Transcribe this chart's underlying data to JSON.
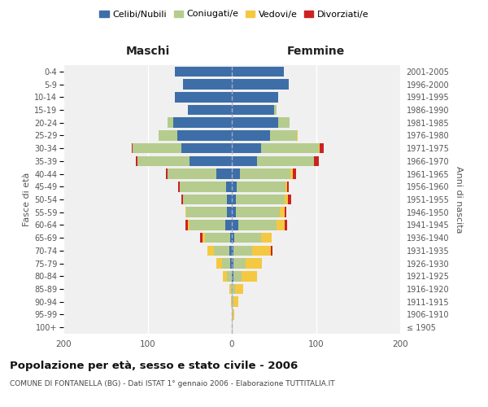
{
  "age_groups": [
    "100+",
    "95-99",
    "90-94",
    "85-89",
    "80-84",
    "75-79",
    "70-74",
    "65-69",
    "60-64",
    "55-59",
    "50-54",
    "45-49",
    "40-44",
    "35-39",
    "30-34",
    "25-29",
    "20-24",
    "15-19",
    "10-14",
    "5-9",
    "0-4"
  ],
  "birth_years": [
    "≤ 1905",
    "1906-1910",
    "1911-1915",
    "1916-1920",
    "1921-1925",
    "1926-1930",
    "1931-1935",
    "1936-1940",
    "1941-1945",
    "1946-1950",
    "1951-1955",
    "1956-1960",
    "1961-1965",
    "1966-1970",
    "1971-1975",
    "1976-1980",
    "1981-1985",
    "1986-1990",
    "1991-1995",
    "1996-2000",
    "2001-2005"
  ],
  "colors": {
    "celibi": "#3d6ea8",
    "coniugati": "#b5cc8e",
    "vedovi": "#f5c842",
    "divorziati": "#cc2222"
  },
  "maschi_celibi": [
    0,
    0,
    0,
    0,
    0,
    2,
    3,
    2,
    8,
    6,
    6,
    7,
    18,
    50,
    60,
    65,
    70,
    52,
    68,
    58,
    68
  ],
  "maschi_coniugati": [
    0,
    0,
    0,
    1,
    6,
    10,
    18,
    30,
    42,
    48,
    52,
    55,
    58,
    62,
    58,
    22,
    6,
    0,
    0,
    0,
    0
  ],
  "maschi_vedovi": [
    0,
    0,
    1,
    2,
    5,
    6,
    8,
    3,
    2,
    1,
    0,
    0,
    0,
    0,
    0,
    0,
    0,
    0,
    0,
    0,
    0
  ],
  "maschi_divorziati": [
    0,
    0,
    0,
    0,
    0,
    0,
    0,
    3,
    3,
    0,
    2,
    2,
    2,
    2,
    1,
    0,
    0,
    0,
    0,
    0,
    0
  ],
  "femmine_celibi": [
    0,
    0,
    0,
    0,
    2,
    2,
    2,
    3,
    8,
    5,
    5,
    6,
    10,
    30,
    35,
    45,
    55,
    50,
    55,
    68,
    62
  ],
  "femmine_coniugati": [
    0,
    1,
    2,
    4,
    10,
    14,
    22,
    32,
    45,
    52,
    58,
    58,
    60,
    68,
    68,
    32,
    14,
    3,
    0,
    0,
    0
  ],
  "femmine_vedovi": [
    1,
    2,
    6,
    10,
    18,
    20,
    22,
    12,
    10,
    6,
    4,
    2,
    2,
    0,
    1,
    1,
    0,
    0,
    0,
    0,
    0
  ],
  "femmine_divorziati": [
    0,
    0,
    0,
    0,
    0,
    0,
    2,
    0,
    3,
    2,
    4,
    2,
    4,
    5,
    5,
    0,
    0,
    0,
    0,
    0,
    0
  ],
  "xlim": 200,
  "title1": "Popolazione per età, sesso e stato civile - 2006",
  "title2": "COMUNE DI FONTANELLA (BG) - Dati ISTAT 1° gennaio 2006 - Elaborazione TUTTITALIA.IT",
  "bg_color": "#f0f0f0",
  "bar_height": 0.8
}
